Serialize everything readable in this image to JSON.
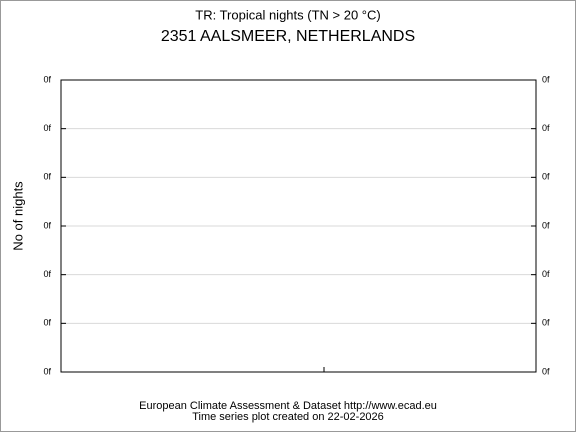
{
  "chart_data": {
    "type": "line",
    "title": "TR: Tropical nights (TN > 20 °C)",
    "subtitle": "2351 AALSMEER, NETHERLANDS",
    "ylabel": "No of nights",
    "footer": [
      "European Climate Assessment & Dataset  http://www.ecad.eu",
      "Time series plot created on 22-02-2026"
    ],
    "ylim": [
      0,
      6
    ],
    "yticks": [
      {
        "value": 0,
        "label": "0f"
      },
      {
        "value": 1,
        "label": "0f"
      },
      {
        "value": 2,
        "label": "0f"
      },
      {
        "value": 3,
        "label": "0f"
      },
      {
        "value": 4,
        "label": "0f"
      },
      {
        "value": 5,
        "label": "0f"
      },
      {
        "value": 6,
        "label": "0f"
      }
    ],
    "grid": true,
    "grid_color": "#d9d9d9"
  }
}
